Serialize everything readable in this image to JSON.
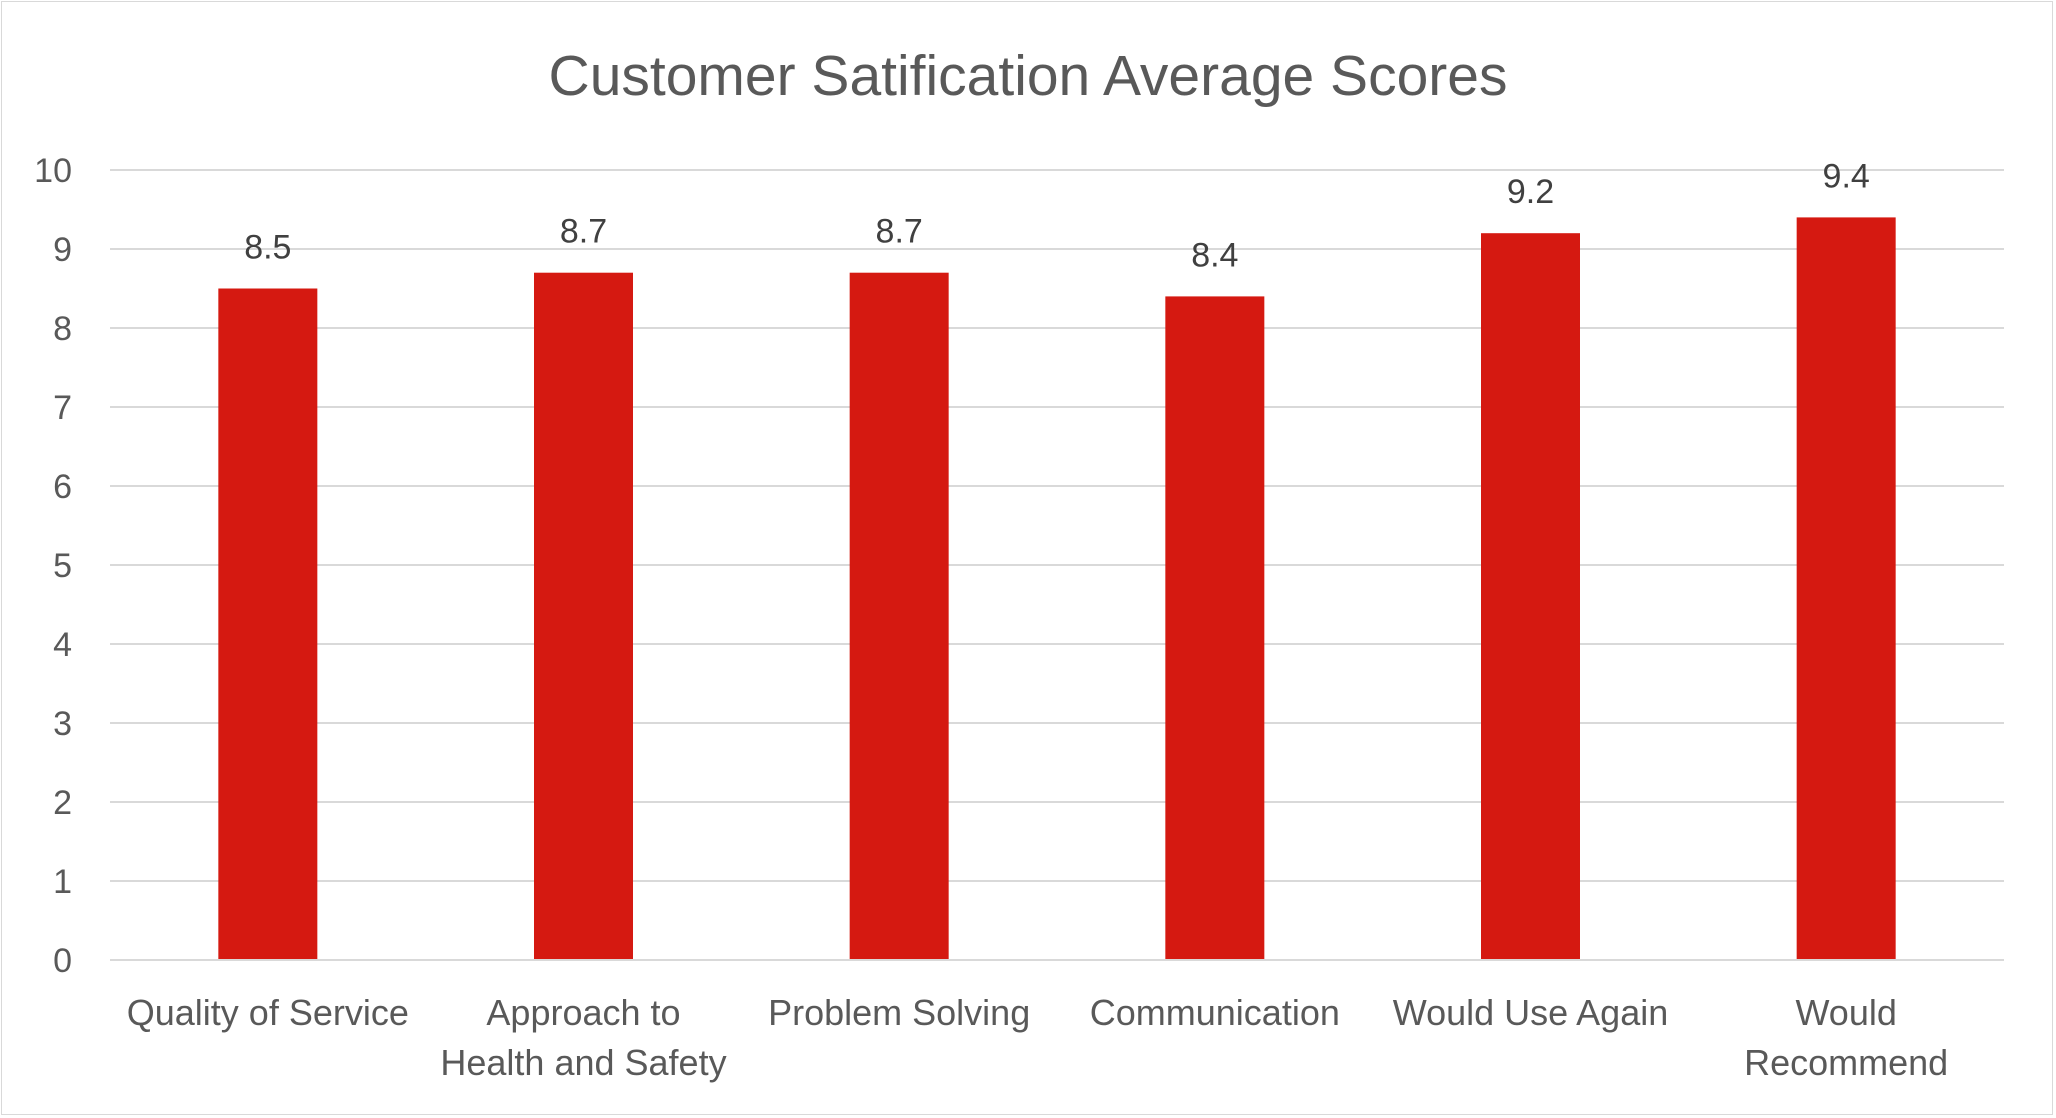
{
  "chart_data": {
    "type": "bar",
    "title": "Customer Satification Average Scores",
    "xlabel": "",
    "ylabel": "",
    "categories": [
      [
        "Quality of Service"
      ],
      [
        "Approach to",
        "Health and Safety"
      ],
      [
        "Problem Solving"
      ],
      [
        "Communication"
      ],
      [
        "Would Use Again"
      ],
      [
        "Would",
        "Recommend"
      ]
    ],
    "values": [
      8.5,
      8.7,
      8.7,
      8.4,
      9.2,
      9.4
    ],
    "data_labels": [
      "8.5",
      "8.7",
      "8.7",
      "8.4",
      "9.2",
      "9.4"
    ],
    "yticks": [
      "0",
      "1",
      "2",
      "3",
      "4",
      "5",
      "6",
      "7",
      "8",
      "9",
      "10"
    ],
    "ylim": [
      0,
      10
    ],
    "grid": true,
    "legend": "none",
    "bar_color": "#d51911"
  }
}
